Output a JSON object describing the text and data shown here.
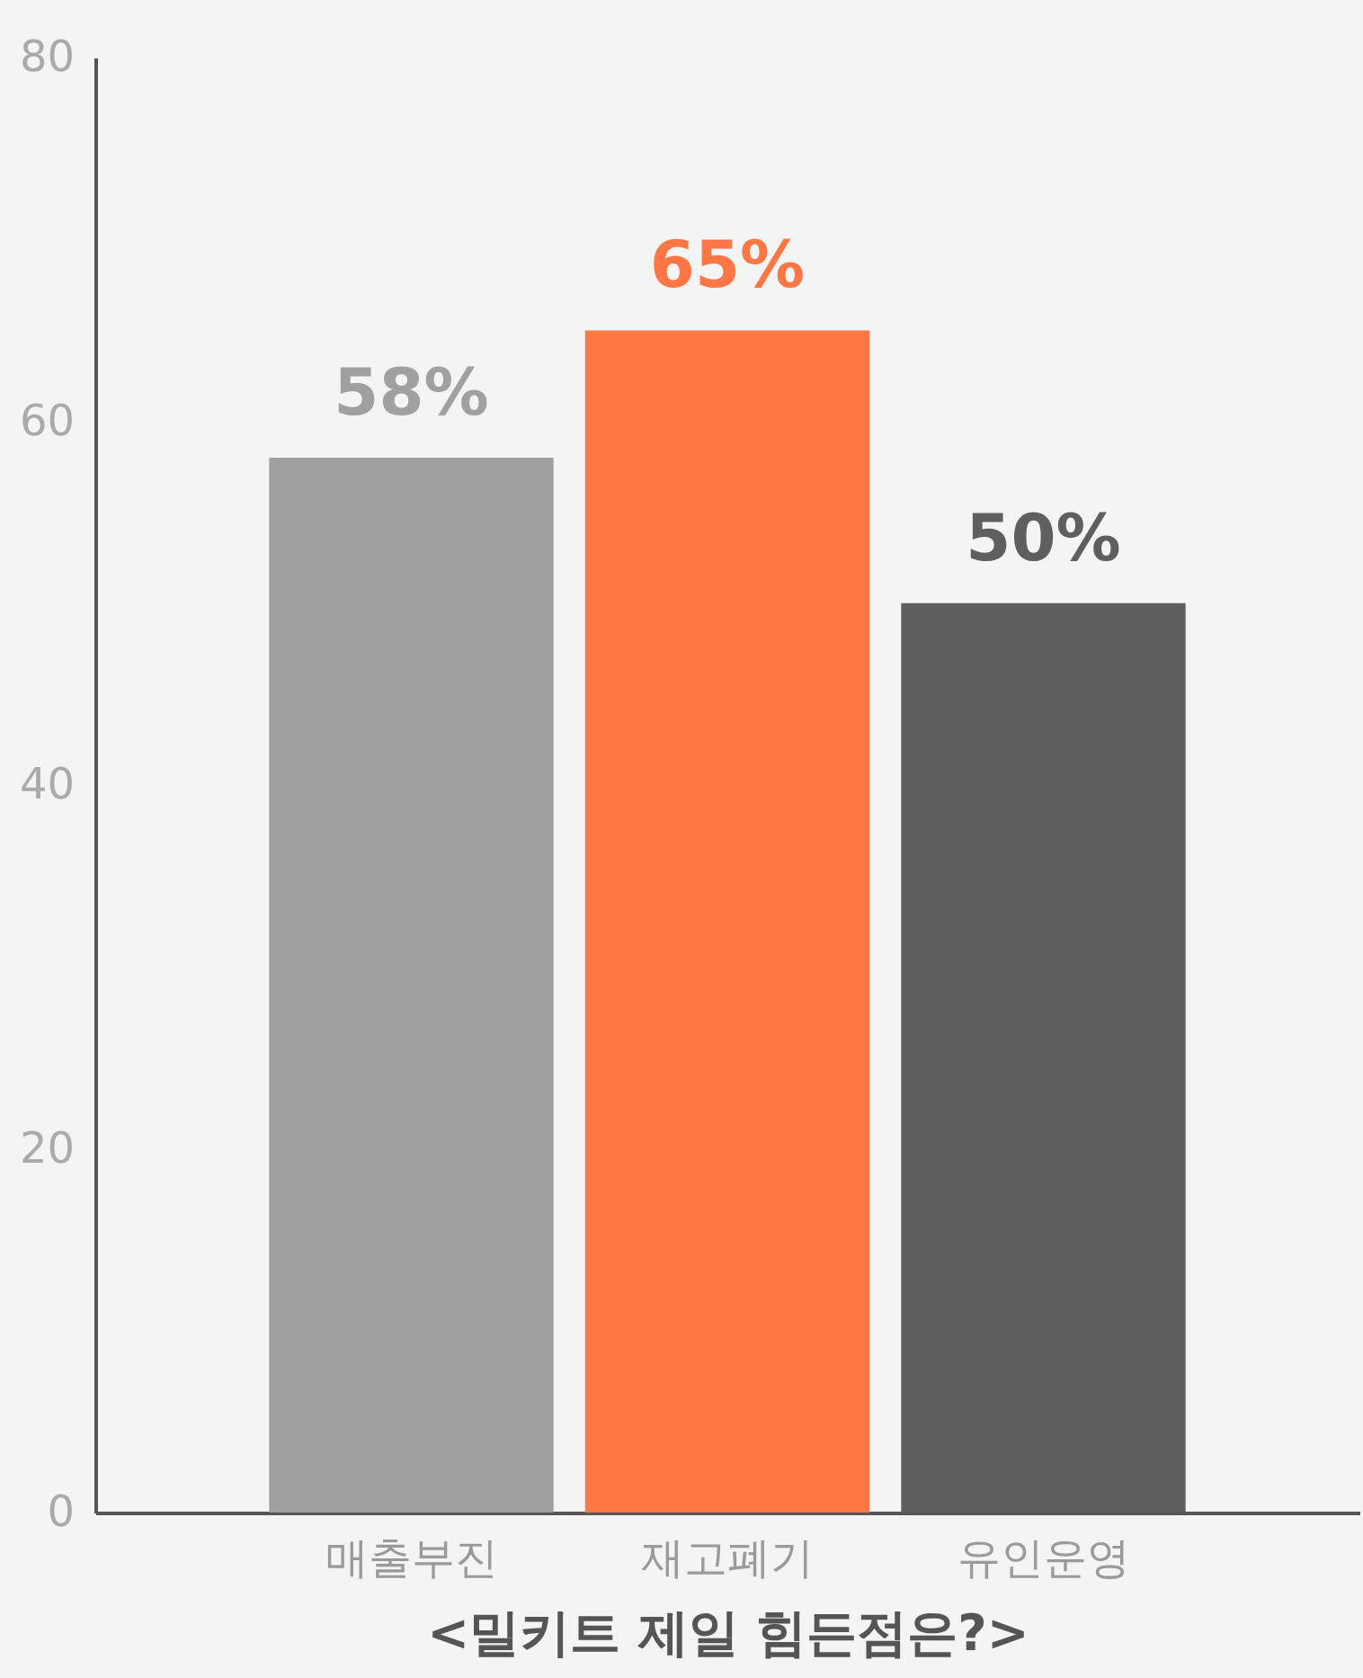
{
  "chart_data": {
    "type": "bar",
    "xlabel": "<밀키트 제일 힘든점은?>",
    "categories": [
      "매출부진",
      "재고폐기",
      "유인운영"
    ],
    "values": [
      58,
      65,
      50
    ],
    "colors": [
      "#a0a0a0",
      "#fe7744",
      "#5f5f5f"
    ],
    "value_labels": [
      "58%",
      "65%",
      "50%"
    ],
    "ylim": [
      0,
      80
    ],
    "yticks": [
      0,
      20,
      40,
      60,
      80
    ]
  }
}
